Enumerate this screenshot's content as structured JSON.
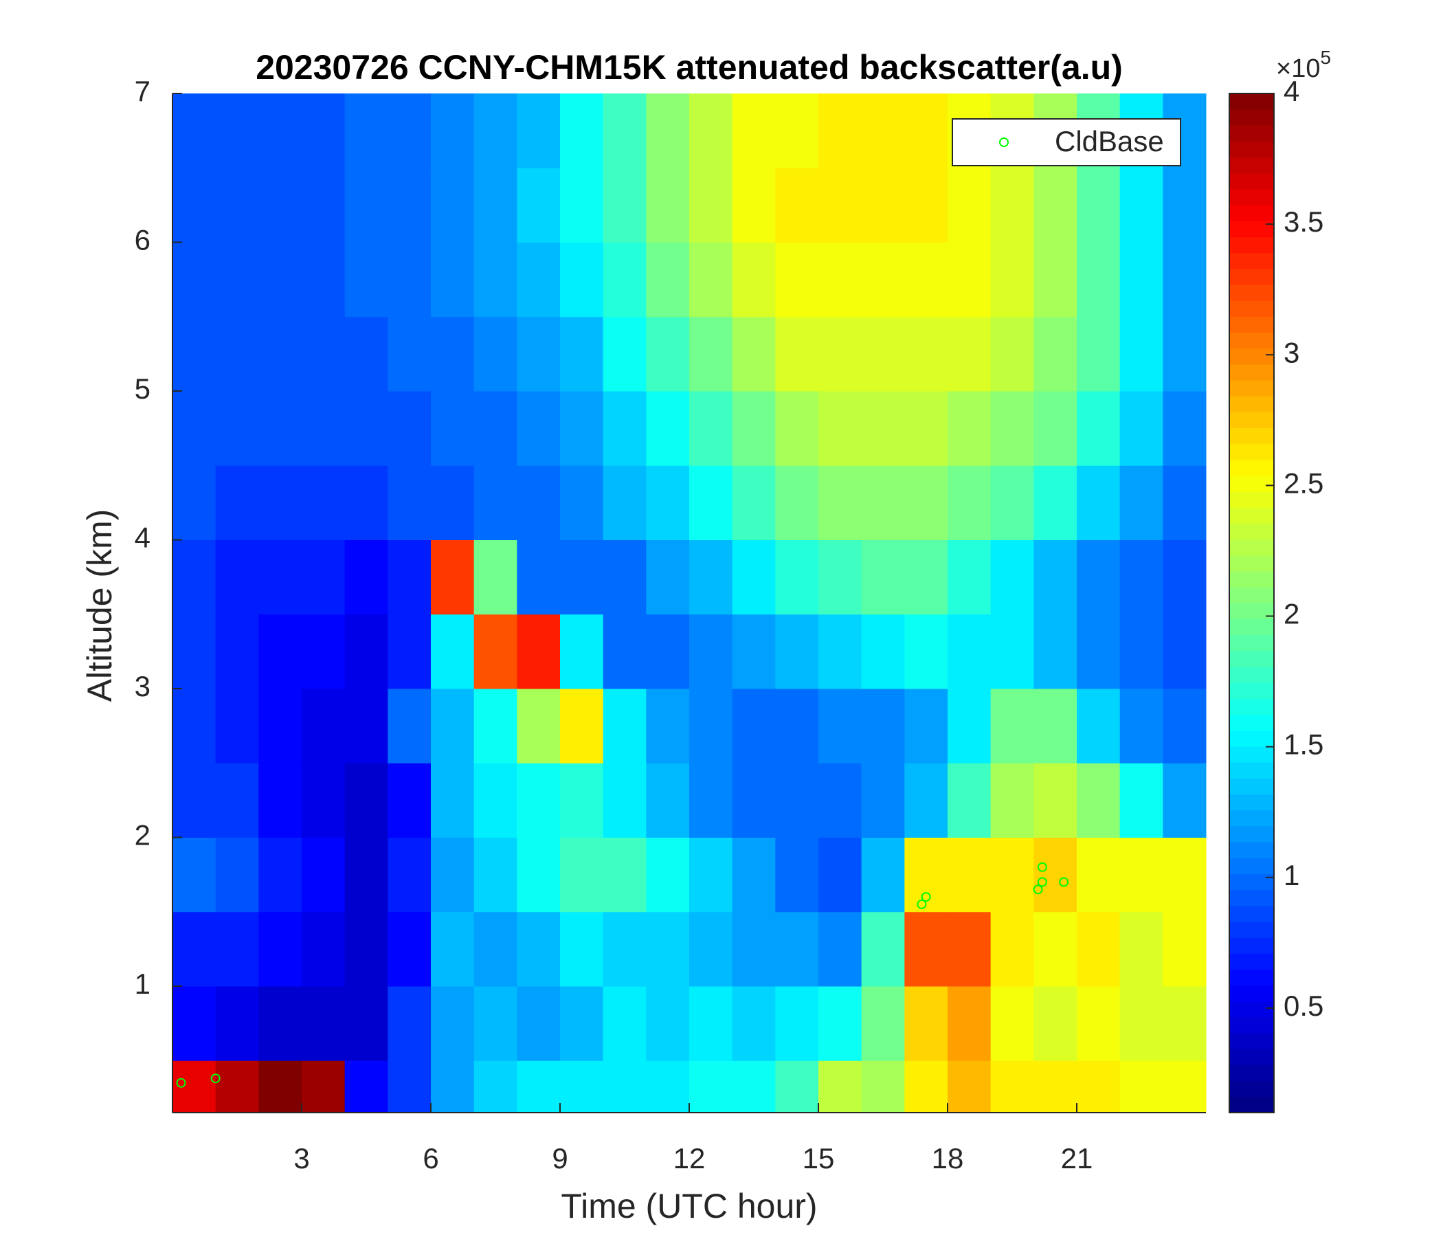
{
  "chart_data": {
    "type": "heatmap",
    "title": "20230726 CCNY-CHM15K attenuated backscatter(a.u)",
    "x_label": "Time (UTC hour)",
    "y_label": "Altitude (km)",
    "colormap": "jet",
    "x_bins": [
      0,
      1,
      2,
      3,
      4,
      5,
      6,
      7,
      8,
      9,
      10,
      11,
      12,
      13,
      14,
      15,
      16,
      17,
      18,
      19,
      20,
      21,
      22,
      23,
      24
    ],
    "y_bins": [
      0.15,
      0.5,
      1,
      1.5,
      2,
      2.5,
      3,
      3.5,
      4,
      4.5,
      5,
      5.5,
      6,
      6.5,
      7
    ],
    "z": [
      [
        3.6,
        3.8,
        4.0,
        3.9,
        0.6,
        0.8,
        1.2,
        1.4,
        1.5,
        1.5,
        1.5,
        1.5,
        1.6,
        1.6,
        1.8,
        2.3,
        2.2,
        2.6,
        2.8,
        2.6,
        2.6,
        2.6,
        2.5,
        2.5
      ],
      [
        0.6,
        0.5,
        0.4,
        0.4,
        0.4,
        0.8,
        1.2,
        1.3,
        1.2,
        1.3,
        1.5,
        1.4,
        1.5,
        1.4,
        1.5,
        1.6,
        2.0,
        2.7,
        2.9,
        2.5,
        2.4,
        2.5,
        2.4,
        2.4
      ],
      [
        0.7,
        0.7,
        0.6,
        0.5,
        0.4,
        0.6,
        1.3,
        1.2,
        1.3,
        1.5,
        1.4,
        1.4,
        1.3,
        1.2,
        1.2,
        1.1,
        1.8,
        3.2,
        3.2,
        2.6,
        2.5,
        2.6,
        2.4,
        2.5
      ],
      [
        1.0,
        0.9,
        0.7,
        0.6,
        0.4,
        0.7,
        1.2,
        1.4,
        1.6,
        1.8,
        1.8,
        1.6,
        1.4,
        1.2,
        1.0,
        0.9,
        1.3,
        2.6,
        2.6,
        2.6,
        2.7,
        2.5,
        2.5,
        2.5
      ],
      [
        0.8,
        0.8,
        0.6,
        0.5,
        0.4,
        0.6,
        1.3,
        1.5,
        1.6,
        1.7,
        1.5,
        1.3,
        1.1,
        1.0,
        1.0,
        1.0,
        1.1,
        1.3,
        1.8,
        2.2,
        2.3,
        2.1,
        1.6,
        1.2
      ],
      [
        0.8,
        0.7,
        0.6,
        0.5,
        0.5,
        1.0,
        1.3,
        1.6,
        2.2,
        2.6,
        1.5,
        1.2,
        1.1,
        1.0,
        1.0,
        1.1,
        1.1,
        1.2,
        1.5,
        2.0,
        2.0,
        1.4,
        1.1,
        1.0
      ],
      [
        0.8,
        0.7,
        0.6,
        0.6,
        0.5,
        0.7,
        1.5,
        3.2,
        3.4,
        1.5,
        1.0,
        1.0,
        1.1,
        1.2,
        1.3,
        1.4,
        1.5,
        1.6,
        1.5,
        1.5,
        1.3,
        1.1,
        1.0,
        0.9
      ],
      [
        0.8,
        0.7,
        0.7,
        0.7,
        0.6,
        0.7,
        3.3,
        2.0,
        1.0,
        1.0,
        1.0,
        1.2,
        1.3,
        1.5,
        1.7,
        1.8,
        1.9,
        1.9,
        1.7,
        1.5,
        1.3,
        1.1,
        1.0,
        0.9
      ],
      [
        0.9,
        0.8,
        0.8,
        0.8,
        0.8,
        0.9,
        0.9,
        1.0,
        1.0,
        1.1,
        1.3,
        1.4,
        1.6,
        1.8,
        2.0,
        2.1,
        2.1,
        2.1,
        2.0,
        1.9,
        1.7,
        1.4,
        1.2,
        1.0
      ],
      [
        0.9,
        0.9,
        0.9,
        0.9,
        0.9,
        0.9,
        1.0,
        1.0,
        1.1,
        1.2,
        1.4,
        1.6,
        1.8,
        2.0,
        2.2,
        2.3,
        2.3,
        2.3,
        2.2,
        2.1,
        2.0,
        1.7,
        1.4,
        1.1
      ],
      [
        0.9,
        0.9,
        0.9,
        0.9,
        0.9,
        1.0,
        1.0,
        1.1,
        1.2,
        1.3,
        1.6,
        1.8,
        2.0,
        2.2,
        2.4,
        2.4,
        2.4,
        2.4,
        2.4,
        2.3,
        2.1,
        1.9,
        1.5,
        1.2
      ],
      [
        0.9,
        0.9,
        0.9,
        0.9,
        1.0,
        1.0,
        1.1,
        1.2,
        1.3,
        1.5,
        1.7,
        2.0,
        2.2,
        2.4,
        2.5,
        2.5,
        2.5,
        2.5,
        2.5,
        2.4,
        2.2,
        1.9,
        1.5,
        1.2
      ],
      [
        0.9,
        0.9,
        0.9,
        0.9,
        1.0,
        1.0,
        1.1,
        1.2,
        1.4,
        1.6,
        1.8,
        2.1,
        2.3,
        2.5,
        2.6,
        2.6,
        2.6,
        2.6,
        2.5,
        2.4,
        2.2,
        1.9,
        1.5,
        1.2
      ],
      [
        0.9,
        0.9,
        0.9,
        0.9,
        1.0,
        1.0,
        1.1,
        1.2,
        1.3,
        1.6,
        1.8,
        2.1,
        2.3,
        2.5,
        2.5,
        2.6,
        2.6,
        2.6,
        2.5,
        2.4,
        2.2,
        1.9,
        1.5,
        1.2
      ]
    ],
    "xlim": [
      0,
      24
    ],
    "xticks": [
      3,
      6,
      9,
      12,
      15,
      18,
      21
    ],
    "ylim": [
      0.15,
      7
    ],
    "yticks": [
      1,
      2,
      3,
      4,
      5,
      6,
      7
    ],
    "clim": [
      0.1,
      4
    ],
    "cticks": [
      0.5,
      1,
      1.5,
      2,
      2.5,
      3,
      3.5,
      4
    ],
    "colorbar_multiplier": {
      "base": "×10",
      "exponent": "5"
    },
    "series": [
      {
        "name": "CldBase",
        "type": "scatter",
        "color": "#00ff00",
        "x": [
          0.2,
          1.0,
          17.4,
          17.5,
          20.1,
          20.2,
          20.2,
          20.7
        ],
        "values": [
          0.35,
          0.38,
          1.55,
          1.6,
          1.65,
          1.7,
          1.8,
          1.7
        ]
      }
    ],
    "legend": "upper right"
  }
}
